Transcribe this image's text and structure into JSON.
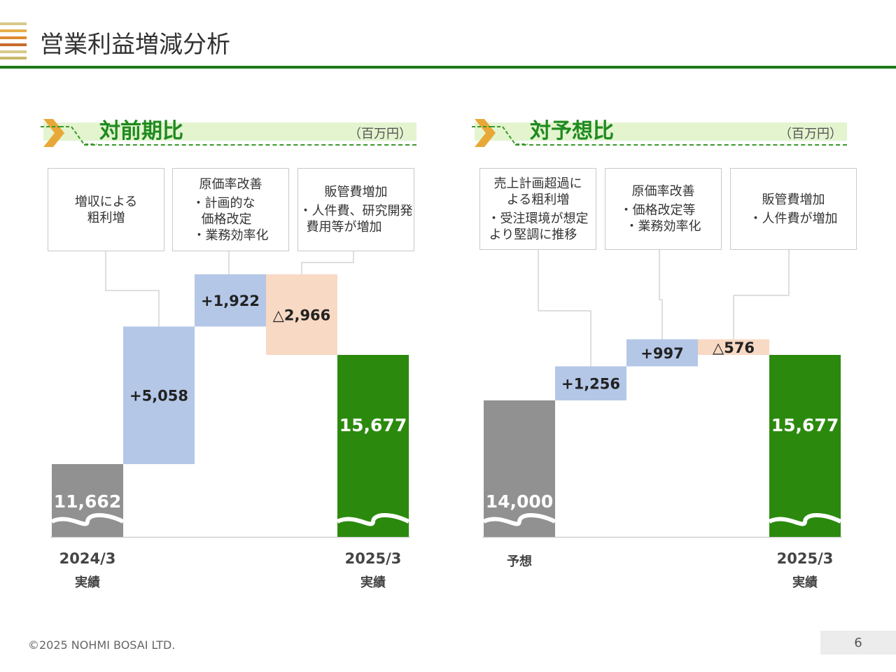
{
  "page": {
    "title": "営業利益増減分析",
    "copyright": "©2025 NOHMI BOSAI LTD.",
    "page_number": "6"
  },
  "colors": {
    "start": "#919191",
    "increase": "#b4c7e7",
    "decrease": "#f8d9c4",
    "end": "#2b8a0e",
    "accent_green": "#1f8a1f",
    "chevron": "#e8a838"
  },
  "sections": [
    {
      "title": "対前期比",
      "unit": "（百万円）",
      "boxes": [
        {
          "heading": "増収による",
          "lines": [
            "粗利増"
          ],
          "bullets": []
        },
        {
          "heading": "原価率改善",
          "lines": [],
          "bullets": [
            "・計画的な",
            "価格改定",
            "・業務効率化"
          ]
        },
        {
          "heading": "販管費増加",
          "lines": [],
          "bullets": [
            "・人件費、研究開発",
            "費用等が増加"
          ]
        }
      ]
    },
    {
      "title": "対予想比",
      "unit": "（百万円）",
      "boxes": [
        {
          "heading": "売上計画超過に",
          "lines": [
            "よる粗利増"
          ],
          "bullets": [
            "・受注環境が想定",
            "より堅調に推移"
          ]
        },
        {
          "heading": "原価率改善",
          "lines": [],
          "bullets": [
            "・価格改定等",
            "・業務効率化"
          ]
        },
        {
          "heading": "販管費増加",
          "lines": [],
          "bullets": [
            "・人件費が増加"
          ]
        }
      ]
    }
  ],
  "chart_data": [
    {
      "type": "bar",
      "subtype": "waterfall",
      "title": "対前期比",
      "unit": "（百万円）",
      "steps": [
        {
          "kind": "start",
          "value": 11662,
          "label": "11,662",
          "category": "2024/3",
          "sub": "実績"
        },
        {
          "kind": "increase",
          "value": 5058,
          "label": "+5,058"
        },
        {
          "kind": "increase",
          "value": 1922,
          "label": "+1,922"
        },
        {
          "kind": "decrease",
          "value": -2966,
          "label": "△2,966"
        },
        {
          "kind": "end",
          "value": 15677,
          "label": "15,677",
          "category": "2025/3",
          "sub": "実績"
        }
      ],
      "axis_break": true
    },
    {
      "type": "bar",
      "subtype": "waterfall",
      "title": "対予想比",
      "unit": "（百万円）",
      "steps": [
        {
          "kind": "start",
          "value": 14000,
          "label": "14,000",
          "category": "予想",
          "sub": ""
        },
        {
          "kind": "increase",
          "value": 1256,
          "label": "+1,256"
        },
        {
          "kind": "increase",
          "value": 997,
          "label": "+997"
        },
        {
          "kind": "decrease",
          "value": -576,
          "label": "△576"
        },
        {
          "kind": "end",
          "value": 15677,
          "label": "15,677",
          "category": "2025/3",
          "sub": "実績"
        }
      ],
      "axis_break": true
    }
  ]
}
